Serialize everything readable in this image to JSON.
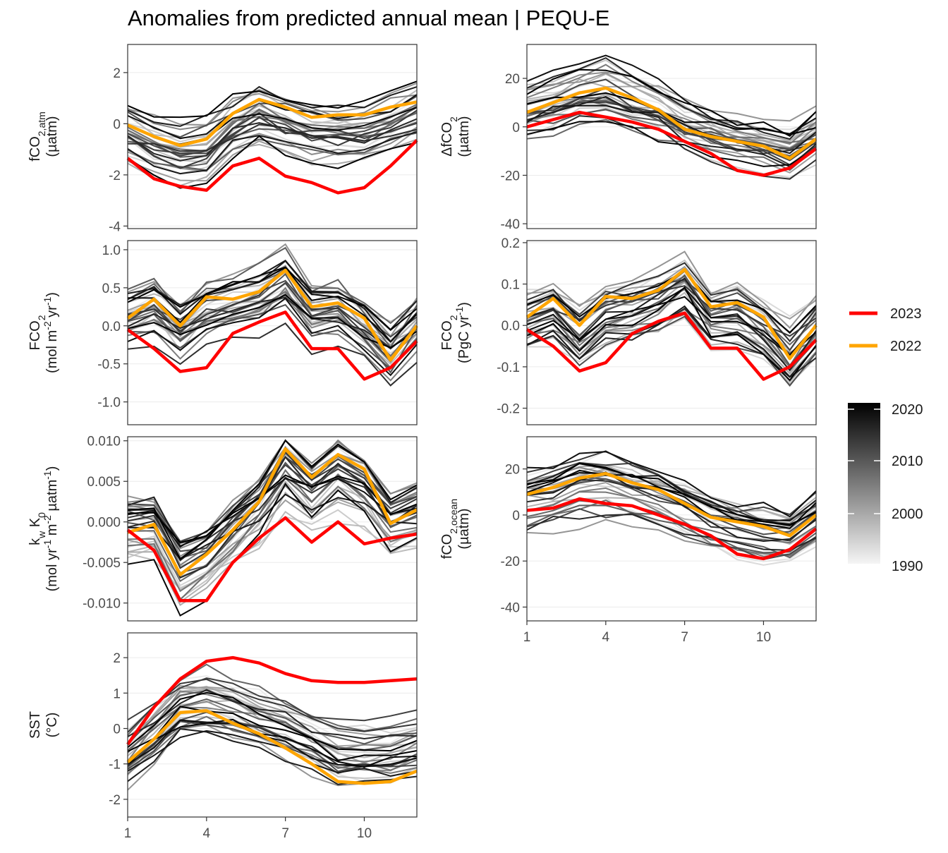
{
  "title": "Anomalies from predicted annual mean | PEQU-E",
  "colors": {
    "y2023": "#ff0000",
    "y2022": "#ffa500",
    "panel_border": "#333333",
    "grid": "#ebebeb"
  },
  "legend": {
    "lines": [
      {
        "name": "2023",
        "color": "#ff0000"
      },
      {
        "name": "2022",
        "color": "#ffa500"
      }
    ],
    "colorbar": {
      "ticks": [
        "2020",
        "2010",
        "2000",
        "1990"
      ],
      "low_color": "#f5f5f5",
      "high_color": "#000000"
    }
  },
  "chart_data": [
    {
      "type": "line",
      "panel": "fCO2,atm",
      "ylabel": {
        "main": "fCO",
        "sub": "2,atm",
        "unit": "(µatm)"
      },
      "x": [
        1,
        2,
        3,
        4,
        5,
        6,
        7,
        8,
        9,
        10,
        11,
        12
      ],
      "xlim": [
        1,
        12
      ],
      "ylim": [
        -4.1,
        3.1
      ],
      "yticks": [
        "2",
        "0",
        "-2",
        "-4"
      ],
      "ytick_values": [
        2,
        0,
        -2,
        -4
      ],
      "xticks": [
        1,
        4,
        7,
        10
      ],
      "show_xticks": false,
      "series": [
        {
          "name": "2023",
          "values": [
            -1.35,
            -2.15,
            -2.45,
            -2.6,
            -1.65,
            -1.35,
            -2.05,
            -2.3,
            -2.7,
            -2.5,
            -1.65,
            -0.65
          ]
        },
        {
          "name": "2022",
          "values": [
            -0.05,
            -0.5,
            -0.85,
            -0.6,
            0.4,
            0.95,
            0.65,
            0.25,
            0.35,
            0.35,
            0.65,
            0.85
          ]
        }
      ]
    },
    {
      "type": "line",
      "panel": "ΔfCO2",
      "ylabel": {
        "main": "ΔfCO",
        "sub": "2",
        "unit": "(µatm)"
      },
      "x": [
        1,
        2,
        3,
        4,
        5,
        6,
        7,
        8,
        9,
        10,
        11,
        12
      ],
      "xlim": [
        1,
        12
      ],
      "ylim": [
        -42,
        34
      ],
      "yticks": [
        "20",
        "0",
        "-20",
        "-40"
      ],
      "ytick_values": [
        20,
        0,
        -20,
        -40
      ],
      "xticks": [
        1,
        4,
        7,
        10
      ],
      "show_xticks": false,
      "series": [
        {
          "name": "2023",
          "values": [
            0,
            3,
            6,
            4,
            2,
            -1,
            -6,
            -11,
            -18,
            -20,
            -17,
            -9
          ]
        },
        {
          "name": "2022",
          "values": [
            6,
            10,
            14,
            16,
            12,
            7,
            -1,
            -4,
            -6,
            -8,
            -13,
            -5
          ]
        }
      ]
    },
    {
      "type": "line",
      "panel": "FCO2 area",
      "ylabel": {
        "main": "FCO",
        "sub": "2",
        "unit_parts": [
          "(mol m",
          "-2",
          " yr",
          "-1",
          ")"
        ]
      },
      "x": [
        1,
        2,
        3,
        4,
        5,
        6,
        7,
        8,
        9,
        10,
        11,
        12
      ],
      "xlim": [
        1,
        12
      ],
      "ylim": [
        -1.3,
        1.12
      ],
      "yticks": [
        "1.0",
        "0.5",
        "0.0",
        "-0.5",
        "-1.0"
      ],
      "ytick_values": [
        1.0,
        0.5,
        0.0,
        -0.5,
        -1.0
      ],
      "xticks": [
        1,
        4,
        7,
        10
      ],
      "show_xticks": false,
      "series": [
        {
          "name": "2023",
          "values": [
            -0.05,
            -0.3,
            -0.6,
            -0.55,
            -0.1,
            0.05,
            0.18,
            -0.3,
            -0.3,
            -0.7,
            -0.55,
            -0.2
          ]
        },
        {
          "name": "2022",
          "values": [
            0.1,
            0.35,
            0.0,
            0.38,
            0.35,
            0.45,
            0.73,
            0.25,
            0.3,
            0.1,
            -0.45,
            0.0
          ]
        }
      ]
    },
    {
      "type": "line",
      "panel": "FCO2 total",
      "ylabel": {
        "main": "FCO",
        "sub": "2",
        "unit_parts": [
          "(PgC yr",
          "-1",
          ")"
        ]
      },
      "x": [
        1,
        2,
        3,
        4,
        5,
        6,
        7,
        8,
        9,
        10,
        11,
        12
      ],
      "xlim": [
        1,
        12
      ],
      "ylim": [
        -0.24,
        0.205
      ],
      "yticks": [
        "0.2",
        "0.1",
        "0.0",
        "-0.1",
        "-0.2"
      ],
      "ytick_values": [
        0.2,
        0.1,
        0.0,
        -0.1,
        -0.2
      ],
      "xticks": [
        1,
        4,
        7,
        10
      ],
      "show_xticks": false,
      "series": [
        {
          "name": "2023",
          "values": [
            -0.01,
            -0.05,
            -0.11,
            -0.09,
            -0.02,
            0.01,
            0.03,
            -0.055,
            -0.055,
            -0.13,
            -0.1,
            -0.035
          ]
        },
        {
          "name": "2022",
          "values": [
            0.02,
            0.065,
            0.0,
            0.07,
            0.065,
            0.085,
            0.135,
            0.045,
            0.055,
            0.02,
            -0.08,
            0.0
          ]
        }
      ]
    },
    {
      "type": "line",
      "panel": "kw K0",
      "ylabel": {
        "main_parts": [
          "k",
          "w",
          " K",
          "0"
        ],
        "unit_parts": [
          "(mol yr",
          "-1",
          " m",
          "-2",
          " µatm",
          "-1",
          ")"
        ]
      },
      "x": [
        1,
        2,
        3,
        4,
        5,
        6,
        7,
        8,
        9,
        10,
        11,
        12
      ],
      "xlim": [
        1,
        12
      ],
      "ylim": [
        -0.0122,
        0.0105
      ],
      "yticks": [
        "0.010",
        "0.005",
        "0.000",
        "-0.005",
        "-0.010"
      ],
      "ytick_values": [
        0.01,
        0.005,
        0.0,
        -0.005,
        -0.01
      ],
      "xticks": [
        1,
        4,
        7,
        10
      ],
      "show_xticks": false,
      "series": [
        {
          "name": "2023",
          "values": [
            -0.001,
            -0.0035,
            -0.0097,
            -0.0097,
            -0.005,
            -0.002,
            0.0005,
            -0.0025,
            0.0,
            -0.0027,
            -0.002,
            -0.0015
          ]
        },
        {
          "name": "2022",
          "values": [
            -0.0013,
            -0.0003,
            -0.0065,
            -0.004,
            -0.001,
            0.0025,
            0.009,
            0.0055,
            0.0083,
            0.0065,
            -0.0002,
            0.0015
          ]
        }
      ]
    },
    {
      "type": "line",
      "panel": "fCO2,ocean",
      "ylabel": {
        "main": "fCO",
        "sub": "2,ocean",
        "unit": "(µatm)"
      },
      "x": [
        1,
        2,
        3,
        4,
        5,
        6,
        7,
        8,
        9,
        10,
        11,
        12
      ],
      "xlim": [
        1,
        12
      ],
      "ylim": [
        -46,
        34
      ],
      "yticks": [
        "20",
        "0",
        "-20",
        "-40"
      ],
      "ytick_values": [
        20,
        0,
        -20,
        -40
      ],
      "xticks": [
        1,
        4,
        7,
        10
      ],
      "show_xticks": true,
      "series": [
        {
          "name": "2023",
          "values": [
            2,
            3,
            7,
            5,
            4,
            0,
            -4,
            -9,
            -17,
            -19,
            -15,
            -6
          ]
        },
        {
          "name": "2022",
          "values": [
            9,
            12,
            16,
            18,
            14,
            11,
            5,
            -1,
            -3,
            -5,
            -9,
            0
          ]
        }
      ]
    },
    {
      "type": "line",
      "panel": "SST",
      "ylabel": {
        "main": "SST",
        "unit": "(°C)"
      },
      "x": [
        1,
        2,
        3,
        4,
        5,
        6,
        7,
        8,
        9,
        10,
        11,
        12
      ],
      "xlim": [
        1,
        12
      ],
      "ylim": [
        -2.5,
        2.7
      ],
      "yticks": [
        "2",
        "1",
        "0",
        "-1",
        "-2"
      ],
      "ytick_values": [
        2,
        1,
        0,
        -1,
        -2
      ],
      "xticks": [
        1,
        4,
        7,
        10
      ],
      "show_xticks": true,
      "series": [
        {
          "name": "2023",
          "values": [
            -0.45,
            0.6,
            1.4,
            1.9,
            2.0,
            1.85,
            1.55,
            1.35,
            1.3,
            1.3,
            1.35,
            1.4
          ]
        },
        {
          "name": "2022",
          "values": [
            -0.95,
            -0.3,
            0.45,
            0.5,
            0.15,
            -0.15,
            -0.55,
            -1.0,
            -1.5,
            -1.55,
            -1.5,
            -1.2
          ]
        }
      ]
    }
  ]
}
